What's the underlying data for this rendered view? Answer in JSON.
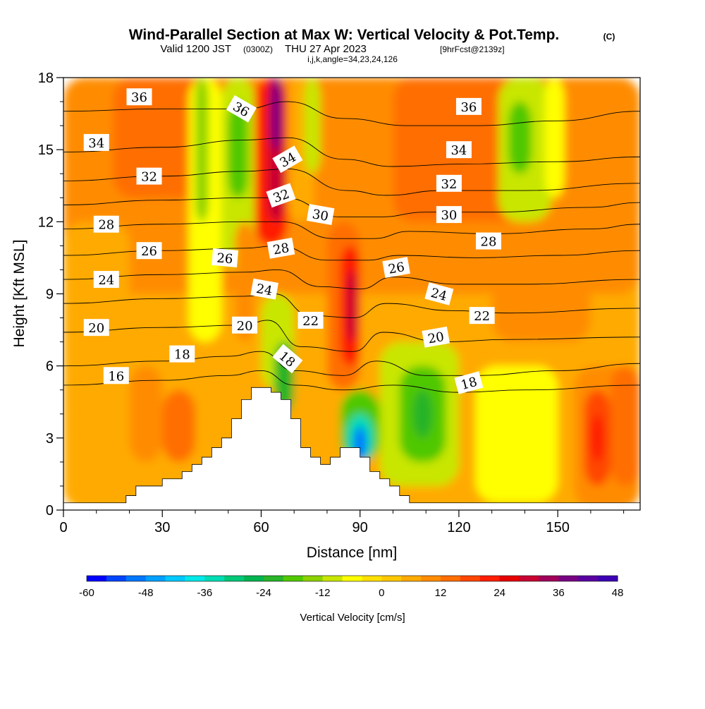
{
  "chart_data": {
    "type": "heatmap",
    "title": {
      "main": "Wind-Parallel Section at Max W: Vertical Velocity & Pot.Temp.",
      "copyright": "(C)",
      "valid_prefix": "Valid 1200 JST",
      "valid_zulu": "(0300Z)",
      "valid_suffix": "THU 27 Apr 2023",
      "forecast": "[9hrFcst@2139z]",
      "indices": "i,j,k,angle=34,23,24,126"
    },
    "xlabel": "Distance [nm]",
    "ylabel": "Height [Kft MSL]",
    "xlim": [
      0,
      175
    ],
    "ylim": [
      0,
      18
    ],
    "x_ticks": [
      "0",
      "30",
      "60",
      "90",
      "120",
      "150"
    ],
    "x_tick_values": [
      0,
      30,
      60,
      90,
      120,
      150
    ],
    "y_ticks": [
      "0",
      "3",
      "6",
      "9",
      "12",
      "15",
      "18"
    ],
    "y_tick_values": [
      0,
      3,
      6,
      9,
      12,
      15,
      18
    ],
    "colorbar": {
      "label": "Vertical Velocity [cm/s]",
      "min": -60,
      "max": 48,
      "step": 4,
      "tick_labels": [
        "-60",
        "-48",
        "-36",
        "-24",
        "-12",
        "0",
        "12",
        "24",
        "36",
        "48"
      ],
      "tick_values": [
        -60,
        -48,
        -36,
        -24,
        -12,
        0,
        12,
        24,
        36,
        48
      ],
      "colors": [
        "#0000ff",
        "#0044ff",
        "#0077ff",
        "#00a0ff",
        "#00c8ff",
        "#00e8e8",
        "#00dcb4",
        "#00c878",
        "#00b450",
        "#28b428",
        "#50c800",
        "#8cd200",
        "#c8e600",
        "#ffff00",
        "#ffe000",
        "#ffc800",
        "#ffaa00",
        "#ff8c00",
        "#ff6e00",
        "#ff4600",
        "#ff1e00",
        "#e60000",
        "#c80032",
        "#a0005a",
        "#780082",
        "#5a00a0",
        "#3c00b4"
      ]
    },
    "terrain": [
      [
        0,
        0.3
      ],
      [
        19,
        0.3
      ],
      [
        19,
        0.6
      ],
      [
        22,
        0.6
      ],
      [
        22,
        1.0
      ],
      [
        30,
        1.0
      ],
      [
        30,
        1.3
      ],
      [
        36,
        1.3
      ],
      [
        36,
        1.6
      ],
      [
        39,
        1.6
      ],
      [
        39,
        1.9
      ],
      [
        42,
        1.9
      ],
      [
        42,
        2.2
      ],
      [
        45,
        2.2
      ],
      [
        45,
        2.6
      ],
      [
        48,
        2.6
      ],
      [
        48,
        3.0
      ],
      [
        51,
        3.0
      ],
      [
        51,
        3.8
      ],
      [
        54,
        3.8
      ],
      [
        54,
        4.6
      ],
      [
        57,
        4.6
      ],
      [
        57,
        5.1
      ],
      [
        63,
        5.1
      ],
      [
        63,
        4.9
      ],
      [
        66,
        4.9
      ],
      [
        66,
        4.6
      ],
      [
        69,
        4.6
      ],
      [
        69,
        3.8
      ],
      [
        72,
        3.8
      ],
      [
        72,
        2.6
      ],
      [
        75,
        2.6
      ],
      [
        75,
        2.2
      ],
      [
        78,
        2.2
      ],
      [
        78,
        1.9
      ],
      [
        81,
        1.9
      ],
      [
        81,
        2.2
      ],
      [
        84,
        2.2
      ],
      [
        84,
        2.6
      ],
      [
        90,
        2.6
      ],
      [
        90,
        2.2
      ],
      [
        93,
        2.2
      ],
      [
        93,
        1.6
      ],
      [
        96,
        1.6
      ],
      [
        96,
        1.3
      ],
      [
        99,
        1.3
      ],
      [
        99,
        1.0
      ],
      [
        102,
        1.0
      ],
      [
        102,
        0.6
      ],
      [
        105,
        0.6
      ],
      [
        105,
        0.3
      ],
      [
        175,
        0.3
      ]
    ],
    "vertical_velocity_cells": [
      {
        "x0": 0,
        "x1": 175,
        "y0": 0,
        "y1": 18,
        "w": 6
      },
      {
        "x0": 0,
        "x1": 175,
        "y0": 9,
        "y1": 18,
        "w": 10
      },
      {
        "x0": 100,
        "x1": 140,
        "y0": 12,
        "y1": 18,
        "w": 12
      },
      {
        "x0": 15,
        "x1": 45,
        "y0": 13,
        "y1": 18,
        "w": 12
      },
      {
        "x0": 130,
        "x1": 160,
        "y0": 7,
        "y1": 10,
        "w": 10
      },
      {
        "x0": 0,
        "x1": 20,
        "y0": 0,
        "y1": 12,
        "w": 4
      },
      {
        "x0": 155,
        "x1": 175,
        "y0": 0,
        "y1": 6,
        "w": 10
      },
      {
        "x0": 158,
        "x1": 166,
        "y0": 1,
        "y1": 5,
        "w": 18
      },
      {
        "x0": 160,
        "x1": 164,
        "y0": 2,
        "y1": 4,
        "w": 22
      },
      {
        "x0": 166,
        "x1": 175,
        "y0": 1,
        "y1": 6,
        "w": 14
      },
      {
        "x0": 38,
        "x1": 48,
        "y0": 7,
        "y1": 18,
        "w": -8
      },
      {
        "x0": 40,
        "x1": 44,
        "y0": 12,
        "y1": 18,
        "w": -16
      },
      {
        "x0": 48,
        "x1": 58,
        "y0": 10,
        "y1": 18,
        "w": -10
      },
      {
        "x0": 50,
        "x1": 56,
        "y0": 13,
        "y1": 17,
        "w": -20
      },
      {
        "x0": 52,
        "x1": 58,
        "y0": 7,
        "y1": 12,
        "w": 8
      },
      {
        "x0": 58,
        "x1": 68,
        "y0": 11,
        "y1": 18,
        "w": 20
      },
      {
        "x0": 62,
        "x1": 67,
        "y0": 12,
        "y1": 18,
        "w": 28
      },
      {
        "x0": 63,
        "x1": 66,
        "y0": 15,
        "y1": 18,
        "w": 38
      },
      {
        "x0": 68,
        "x1": 76,
        "y0": 12,
        "y1": 18,
        "w": 4
      },
      {
        "x0": 73,
        "x1": 78,
        "y0": 14,
        "y1": 18,
        "w": -10
      },
      {
        "x0": 60,
        "x1": 70,
        "y0": 5,
        "y1": 9,
        "w": -12
      },
      {
        "x0": 64,
        "x1": 70,
        "y0": 4,
        "y1": 7,
        "w": -22
      },
      {
        "x0": 80,
        "x1": 90,
        "y0": 5,
        "y1": 12,
        "w": 14
      },
      {
        "x0": 84,
        "x1": 90,
        "y0": 6,
        "y1": 11,
        "w": 22
      },
      {
        "x0": 86,
        "x1": 89,
        "y0": 7,
        "y1": 10,
        "w": 28
      },
      {
        "x0": 84,
        "x1": 96,
        "y0": 2,
        "y1": 5,
        "w": -20
      },
      {
        "x0": 86,
        "x1": 94,
        "y0": 2,
        "y1": 4,
        "w": -34
      },
      {
        "x0": 88,
        "x1": 92,
        "y0": 2,
        "y1": 3.5,
        "w": -50
      },
      {
        "x0": 96,
        "x1": 120,
        "y0": 1,
        "y1": 7,
        "w": -12
      },
      {
        "x0": 102,
        "x1": 116,
        "y0": 2,
        "y1": 6,
        "w": -20
      },
      {
        "x0": 106,
        "x1": 112,
        "y0": 3,
        "y1": 5,
        "w": -24
      },
      {
        "x0": 125,
        "x1": 150,
        "y0": 0.3,
        "y1": 6,
        "w": -6
      },
      {
        "x0": 132,
        "x1": 148,
        "y0": 12,
        "y1": 18,
        "w": -10
      },
      {
        "x0": 135,
        "x1": 142,
        "y0": 14,
        "y1": 17,
        "w": -20
      },
      {
        "x0": 146,
        "x1": 152,
        "y0": 13,
        "y1": 18,
        "w": -6
      },
      {
        "x0": 20,
        "x1": 30,
        "y0": 2,
        "y1": 6,
        "w": 10
      },
      {
        "x0": 30,
        "x1": 40,
        "y0": 2,
        "y1": 5,
        "w": 14
      }
    ],
    "theta_contours": [
      {
        "level": 16,
        "points": [
          [
            0,
            5.2
          ],
          [
            30,
            5.4
          ],
          [
            50,
            5.6
          ],
          [
            60,
            5.8
          ],
          [
            70,
            5.2
          ],
          [
            85,
            5.0
          ],
          [
            100,
            5.2
          ],
          [
            120,
            4.9
          ],
          [
            140,
            5.0
          ],
          [
            175,
            5.2
          ]
        ]
      },
      {
        "level": 18,
        "points": [
          [
            0,
            6.0
          ],
          [
            30,
            6.2
          ],
          [
            50,
            6.4
          ],
          [
            60,
            6.6
          ],
          [
            70,
            5.8
          ],
          [
            85,
            5.6
          ],
          [
            95,
            6.2
          ],
          [
            110,
            5.6
          ],
          [
            125,
            5.6
          ],
          [
            150,
            5.8
          ],
          [
            175,
            6.1
          ]
        ]
      },
      {
        "level": 20,
        "points": [
          [
            0,
            7.4
          ],
          [
            30,
            7.6
          ],
          [
            55,
            7.7
          ],
          [
            62,
            7.9
          ],
          [
            72,
            6.8
          ],
          [
            88,
            6.6
          ],
          [
            97,
            7.4
          ],
          [
            115,
            7.0
          ],
          [
            135,
            7.1
          ],
          [
            175,
            7.2
          ]
        ]
      },
      {
        "level": 22,
        "points": [
          [
            0,
            8.6
          ],
          [
            30,
            8.8
          ],
          [
            55,
            8.9
          ],
          [
            64,
            9.0
          ],
          [
            75,
            8.1
          ],
          [
            88,
            8.0
          ],
          [
            98,
            8.6
          ],
          [
            118,
            8.3
          ],
          [
            135,
            8.2
          ],
          [
            175,
            8.4
          ]
        ]
      },
      {
        "level": 24,
        "points": [
          [
            0,
            9.6
          ],
          [
            30,
            9.8
          ],
          [
            55,
            9.9
          ],
          [
            65,
            10.0
          ],
          [
            78,
            9.3
          ],
          [
            90,
            9.2
          ],
          [
            100,
            9.7
          ],
          [
            120,
            9.4
          ],
          [
            140,
            9.4
          ],
          [
            175,
            9.6
          ]
        ]
      },
      {
        "level": 26,
        "points": [
          [
            0,
            10.6
          ],
          [
            30,
            10.8
          ],
          [
            55,
            10.9
          ],
          [
            65,
            11.0
          ],
          [
            80,
            10.4
          ],
          [
            92,
            10.4
          ],
          [
            102,
            10.6
          ],
          [
            125,
            10.5
          ],
          [
            150,
            10.6
          ],
          [
            175,
            10.8
          ]
        ]
      },
      {
        "level": 28,
        "points": [
          [
            0,
            11.7
          ],
          [
            30,
            11.9
          ],
          [
            55,
            12.0
          ],
          [
            66,
            12.0
          ],
          [
            82,
            11.3
          ],
          [
            94,
            11.3
          ],
          [
            105,
            11.6
          ],
          [
            130,
            11.5
          ],
          [
            160,
            11.7
          ],
          [
            175,
            11.9
          ]
        ]
      },
      {
        "level": 30,
        "points": [
          [
            0,
            12.7
          ],
          [
            30,
            12.9
          ],
          [
            55,
            13.0
          ],
          [
            67,
            13.0
          ],
          [
            84,
            12.2
          ],
          [
            96,
            12.2
          ],
          [
            110,
            12.4
          ],
          [
            130,
            12.4
          ],
          [
            160,
            12.6
          ],
          [
            175,
            12.8
          ]
        ]
      },
      {
        "level": 32,
        "points": [
          [
            0,
            13.7
          ],
          [
            30,
            13.9
          ],
          [
            55,
            14.1
          ],
          [
            68,
            14.2
          ],
          [
            86,
            13.3
          ],
          [
            98,
            13.1
          ],
          [
            115,
            13.3
          ],
          [
            140,
            13.3
          ],
          [
            175,
            13.6
          ]
        ]
      },
      {
        "level": 34,
        "points": [
          [
            0,
            14.9
          ],
          [
            30,
            15.1
          ],
          [
            55,
            15.4
          ],
          [
            68,
            15.5
          ],
          [
            85,
            14.6
          ],
          [
            100,
            14.3
          ],
          [
            120,
            14.4
          ],
          [
            150,
            14.5
          ],
          [
            175,
            14.7
          ]
        ]
      },
      {
        "level": 36,
        "points": [
          [
            0,
            16.6
          ],
          [
            30,
            16.7
          ],
          [
            55,
            16.7
          ],
          [
            68,
            17.0
          ],
          [
            85,
            16.3
          ],
          [
            105,
            16.0
          ],
          [
            125,
            16.0
          ],
          [
            150,
            16.2
          ],
          [
            175,
            16.6
          ]
        ]
      }
    ],
    "contour_labels": [
      {
        "text": "36",
        "x": 23,
        "y": 17.2,
        "angle": 0
      },
      {
        "text": "36",
        "x": 54,
        "y": 16.7,
        "angle": 30
      },
      {
        "text": "36",
        "x": 123,
        "y": 16.8,
        "angle": 0
      },
      {
        "text": "34",
        "x": 10,
        "y": 15.3,
        "angle": 0
      },
      {
        "text": "34",
        "x": 68,
        "y": 14.6,
        "angle": -30
      },
      {
        "text": "34",
        "x": 120,
        "y": 15.0,
        "angle": 0
      },
      {
        "text": "32",
        "x": 26,
        "y": 13.9,
        "angle": 0
      },
      {
        "text": "32",
        "x": 66,
        "y": 13.1,
        "angle": -20
      },
      {
        "text": "32",
        "x": 117,
        "y": 13.6,
        "angle": 0
      },
      {
        "text": "30",
        "x": 78,
        "y": 12.3,
        "angle": 10
      },
      {
        "text": "30",
        "x": 117,
        "y": 12.3,
        "angle": 0
      },
      {
        "text": "28",
        "x": 13,
        "y": 11.9,
        "angle": 0
      },
      {
        "text": "28",
        "x": 66,
        "y": 10.9,
        "angle": -10
      },
      {
        "text": "28",
        "x": 129,
        "y": 11.2,
        "angle": 0
      },
      {
        "text": "26",
        "x": 26,
        "y": 10.8,
        "angle": 0
      },
      {
        "text": "26",
        "x": 49,
        "y": 10.5,
        "angle": 5
      },
      {
        "text": "26",
        "x": 101,
        "y": 10.1,
        "angle": -10
      },
      {
        "text": "24",
        "x": 13,
        "y": 9.6,
        "angle": 0
      },
      {
        "text": "24",
        "x": 61,
        "y": 9.2,
        "angle": 10
      },
      {
        "text": "24",
        "x": 114,
        "y": 9.0,
        "angle": 15
      },
      {
        "text": "22",
        "x": 75,
        "y": 7.9,
        "angle": 0
      },
      {
        "text": "22",
        "x": 127,
        "y": 8.1,
        "angle": 0
      },
      {
        "text": "20",
        "x": 10,
        "y": 7.6,
        "angle": 0
      },
      {
        "text": "20",
        "x": 55,
        "y": 7.7,
        "angle": 0
      },
      {
        "text": "20",
        "x": 113,
        "y": 7.2,
        "angle": -10
      },
      {
        "text": "18",
        "x": 36,
        "y": 6.5,
        "angle": 0
      },
      {
        "text": "18",
        "x": 68,
        "y": 6.3,
        "angle": 40
      },
      {
        "text": "18",
        "x": 123,
        "y": 5.3,
        "angle": -15
      },
      {
        "text": "16",
        "x": 16,
        "y": 5.6,
        "angle": 0
      }
    ]
  }
}
